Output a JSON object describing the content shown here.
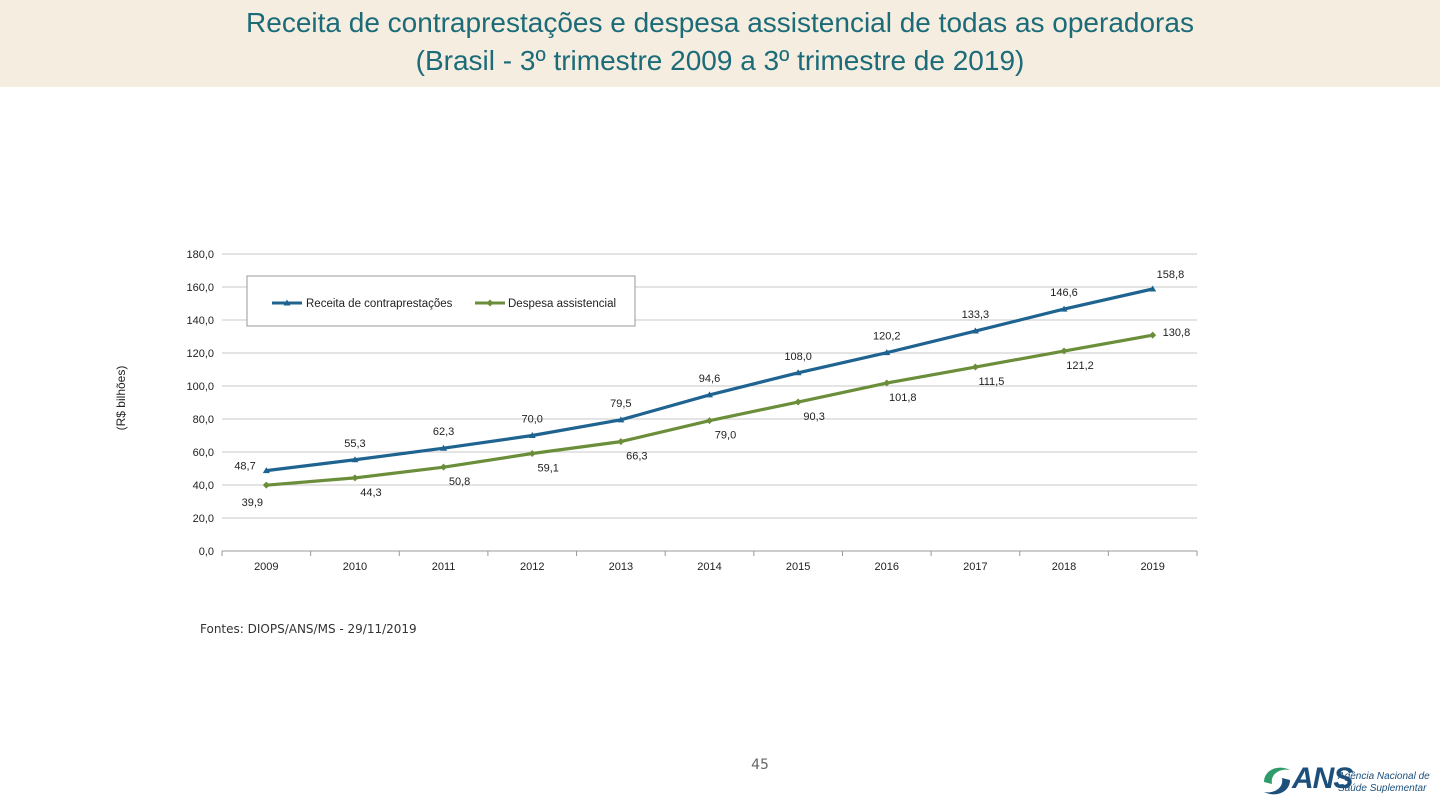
{
  "header": {
    "title_line1": "Receita de contraprestações e despesa assistencial de todas as operadoras",
    "title_line2": "(Brasil - 3º trimestre 2009 a 3º trimestre de 2019)"
  },
  "footer": {
    "source": "Fontes: DIOPS/ANS/MS - 29/11/2019",
    "page_number": "45"
  },
  "logo": {
    "text": "ANS",
    "subtitle_line1": "Agência Nacional de",
    "subtitle_line2": "Saúde Suplementar"
  },
  "colors": {
    "receita": "#1f6391",
    "despesa": "#6b8e3a",
    "title": "#1c6b78"
  },
  "chart_data": {
    "type": "line",
    "title": "",
    "xlabel": "",
    "ylabel": "(R$ bilhões)",
    "ylim": [
      0,
      180
    ],
    "yticks": [
      "0,0",
      "20,0",
      "40,0",
      "60,0",
      "80,0",
      "100,0",
      "120,0",
      "140,0",
      "160,0",
      "180,0"
    ],
    "categories": [
      "2009",
      "2010",
      "2011",
      "2012",
      "2013",
      "2014",
      "2015",
      "2016",
      "2017",
      "2018",
      "2019"
    ],
    "grid": true,
    "legend": "top-left",
    "series": [
      {
        "name": "Receita de contraprestações",
        "values": [
          48.7,
          55.3,
          62.3,
          70.0,
          79.5,
          94.6,
          108.0,
          120.2,
          133.3,
          146.6,
          158.8
        ],
        "labels": [
          "48,7",
          "55,3",
          "62,3",
          "70,0",
          "79,5",
          "94,6",
          "108,0",
          "120,2",
          "133,3",
          "146,6",
          "158,8"
        ]
      },
      {
        "name": "Despesa assistencial",
        "values": [
          39.9,
          44.3,
          50.8,
          59.1,
          66.3,
          79.0,
          90.3,
          101.8,
          111.5,
          121.2,
          130.8
        ],
        "labels": [
          "39,9",
          "44,3",
          "50,8",
          "59,1",
          "66,3",
          "79,0",
          "90,3",
          "101,8",
          "111,5",
          "121,2",
          "130,8"
        ]
      }
    ]
  }
}
